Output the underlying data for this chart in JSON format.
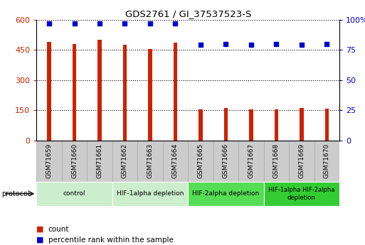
{
  "title": "GDS2761 / GI_37537523-S",
  "samples": [
    "GSM71659",
    "GSM71660",
    "GSM71661",
    "GSM71662",
    "GSM71663",
    "GSM71664",
    "GSM71665",
    "GSM71666",
    "GSM71667",
    "GSM71668",
    "GSM71669",
    "GSM71670"
  ],
  "counts": [
    490,
    480,
    500,
    475,
    455,
    485,
    155,
    162,
    155,
    152,
    162,
    157
  ],
  "percentiles": [
    97,
    97,
    97,
    97,
    97,
    97,
    79,
    80,
    79,
    80,
    79,
    80
  ],
  "ylim_left": [
    0,
    600
  ],
  "ylim_right": [
    0,
    100
  ],
  "yticks_left": [
    0,
    150,
    300,
    450,
    600
  ],
  "yticks_right": [
    0,
    25,
    50,
    75,
    100
  ],
  "bar_color": "#cc2200",
  "dot_color": "#0000cc",
  "bg_color": "#ffffff",
  "grid_color": "#000000",
  "sample_bg": "#cccccc",
  "sample_border": "#aaaaaa",
  "protocol_groups": [
    {
      "label": "control",
      "start": 0,
      "end": 2,
      "color": "#cceecc"
    },
    {
      "label": "HIF-1alpha depletion",
      "start": 3,
      "end": 5,
      "color": "#cceecc"
    },
    {
      "label": "HIF-2alpha depletion",
      "start": 6,
      "end": 8,
      "color": "#55dd55"
    },
    {
      "label": "HIF-1alpha HIF-2alpha\ndepletion",
      "start": 9,
      "end": 11,
      "color": "#33cc33"
    }
  ],
  "legend_count_label": "count",
  "legend_percentile_label": "percentile rank within the sample",
  "protocol_label": "protocol",
  "bar_width": 0.15
}
